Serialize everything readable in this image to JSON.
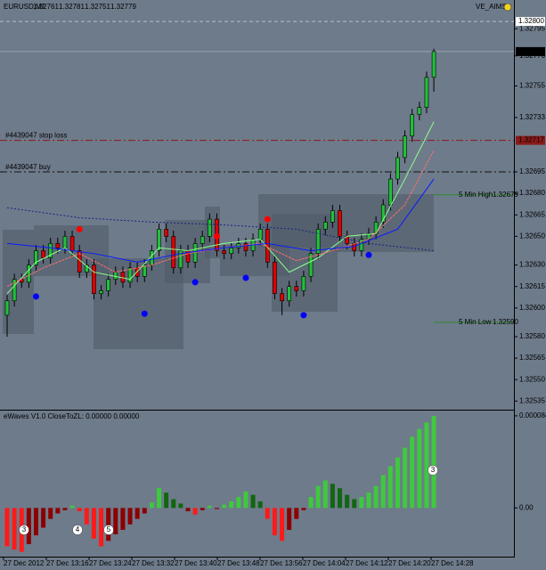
{
  "chart_data": [
    {
      "type": "candlestick",
      "symbol": "EURUSD,M1",
      "indicator_name": "VE_AIMS",
      "bull_color": "#22c03a",
      "bear_color": "#e00000",
      "candles": {
        "open": [
          1.32595,
          1.32605,
          1.3262,
          1.32618,
          1.3263,
          1.3264,
          1.32635,
          1.32645,
          1.32642,
          1.3265,
          1.3264,
          1.32625,
          1.3263,
          1.3261,
          1.32612,
          1.3262,
          1.32625,
          1.32618,
          1.32628,
          1.32622,
          1.3263,
          1.3264,
          1.32655,
          1.3265,
          1.32628,
          1.3264,
          1.32632,
          1.32645,
          1.3265,
          1.32662,
          1.3264,
          1.32638,
          1.32642,
          1.32645,
          1.3264,
          1.32648,
          1.32655,
          1.32632,
          1.3261,
          1.32605,
          1.32615,
          1.32612,
          1.32622,
          1.32638,
          1.32655,
          1.3266,
          1.32668,
          1.3265,
          1.32645,
          1.3264,
          1.32648,
          1.32652,
          1.3266,
          1.32672,
          1.3269,
          1.32705,
          1.3272,
          1.32735,
          1.3274,
          1.32761
        ],
        "high": [
          1.32609,
          1.32624,
          1.32624,
          1.32634,
          1.32644,
          1.32644,
          1.32649,
          1.32649,
          1.32654,
          1.32654,
          1.32644,
          1.32634,
          1.32634,
          1.32616,
          1.32624,
          1.32629,
          1.32629,
          1.32632,
          1.32632,
          1.32634,
          1.32644,
          1.32659,
          1.32659,
          1.32654,
          1.32644,
          1.32644,
          1.32649,
          1.32654,
          1.32666,
          1.32666,
          1.32644,
          1.32646,
          1.32649,
          1.32649,
          1.32652,
          1.32659,
          1.32659,
          1.32636,
          1.32614,
          1.32619,
          1.32619,
          1.32626,
          1.32642,
          1.32659,
          1.32664,
          1.32672,
          1.32672,
          1.32654,
          1.32649,
          1.32652,
          1.32656,
          1.32664,
          1.32676,
          1.32694,
          1.32709,
          1.32724,
          1.32739,
          1.32744,
          1.32765,
          1.32781
        ],
        "low": [
          1.3258,
          1.32601,
          1.32614,
          1.32614,
          1.32626,
          1.32631,
          1.32631,
          1.32638,
          1.32638,
          1.32636,
          1.32621,
          1.32621,
          1.32606,
          1.32606,
          1.32608,
          1.32616,
          1.32614,
          1.32614,
          1.32618,
          1.32618,
          1.32626,
          1.32636,
          1.32646,
          1.32624,
          1.32624,
          1.32628,
          1.32628,
          1.32641,
          1.32646,
          1.32636,
          1.32634,
          1.32634,
          1.32638,
          1.32636,
          1.32636,
          1.32644,
          1.32628,
          1.32606,
          1.32595,
          1.32601,
          1.32608,
          1.32608,
          1.32618,
          1.32634,
          1.32651,
          1.32656,
          1.32646,
          1.32641,
          1.32636,
          1.32636,
          1.32644,
          1.32648,
          1.32656,
          1.32668,
          1.32686,
          1.32701,
          1.32716,
          1.32731,
          1.32736,
          1.32751
        ],
        "close": [
          1.32605,
          1.3262,
          1.32618,
          1.3263,
          1.3264,
          1.32635,
          1.32645,
          1.32642,
          1.3265,
          1.3264,
          1.32625,
          1.3263,
          1.3261,
          1.32612,
          1.3262,
          1.32625,
          1.32618,
          1.32628,
          1.32622,
          1.3263,
          1.3264,
          1.32655,
          1.3265,
          1.32628,
          1.3264,
          1.32632,
          1.32645,
          1.3265,
          1.32662,
          1.3264,
          1.32638,
          1.32642,
          1.32645,
          1.3264,
          1.32648,
          1.32655,
          1.32632,
          1.3261,
          1.32605,
          1.32615,
          1.32612,
          1.32622,
          1.32638,
          1.32655,
          1.3266,
          1.32668,
          1.3265,
          1.32645,
          1.3264,
          1.32648,
          1.32652,
          1.3266,
          1.32672,
          1.3269,
          1.32705,
          1.3272,
          1.32735,
          1.3274,
          1.32761,
          1.32779
        ]
      },
      "lines": [
        {
          "color": "#8cff8c",
          "dash": "none",
          "x": [
            0,
            4,
            8,
            12,
            17,
            21,
            25,
            30,
            35,
            39,
            43,
            47,
            51,
            55,
            59
          ],
          "values": [
            1.3261,
            1.32632,
            1.32642,
            1.32625,
            1.3262,
            1.32642,
            1.3264,
            1.32645,
            1.32648,
            1.32625,
            1.32635,
            1.3265,
            1.32652,
            1.3269,
            1.3273
          ]
        },
        {
          "color": "#ff7070",
          "dash": "3 1",
          "x": [
            0,
            5,
            10,
            15,
            20,
            25,
            30,
            35,
            40,
            45,
            50,
            55,
            59
          ],
          "values": [
            1.32615,
            1.32628,
            1.32638,
            1.32625,
            1.3263,
            1.32638,
            1.32642,
            1.32645,
            1.32633,
            1.3264,
            1.32648,
            1.32672,
            1.3271
          ]
        },
        {
          "color": "#0a1aff",
          "dash": "none",
          "x": [
            0,
            6,
            12,
            18,
            24,
            30,
            36,
            42,
            48,
            54,
            59
          ],
          "values": [
            1.32645,
            1.32642,
            1.32638,
            1.32632,
            1.32638,
            1.32642,
            1.32645,
            1.3264,
            1.32643,
            1.32655,
            1.3269
          ]
        },
        {
          "color": "#1a237e",
          "dash": "2 2",
          "x": [
            0,
            10,
            20,
            30,
            40,
            50,
            59
          ],
          "values": [
            1.3267,
            1.32663,
            1.3266,
            1.32658,
            1.32655,
            1.32645,
            1.3264
          ]
        }
      ],
      "markers": [
        {
          "x": 4,
          "value": 1.32608,
          "color": "#0000ff"
        },
        {
          "x": 19,
          "value": 1.32596,
          "color": "#0000ff"
        },
        {
          "x": 26,
          "value": 1.32618,
          "color": "#0000ff"
        },
        {
          "x": 33,
          "value": 1.32621,
          "color": "#0000ff"
        },
        {
          "x": 41,
          "value": 1.32595,
          "color": "#0000ff"
        },
        {
          "x": 50,
          "value": 1.32637,
          "color": "#0000ff"
        },
        {
          "x": 10,
          "value": 1.32655,
          "color": "#ff0000"
        },
        {
          "x": 29,
          "value": 1.3265,
          "color": "#ff0000"
        },
        {
          "x": 36,
          "value": 1.32662,
          "color": "#ff0000"
        }
      ],
      "levels": [
        {
          "value": 1.328,
          "value_label": "1.32800",
          "color": "#b8bec6",
          "dash": "4 3",
          "extent": "full",
          "box": "#ffffff"
        },
        {
          "name": "#4439047 stop loss",
          "value": 1.32717,
          "color": "#8b1a1a",
          "dash": "8 3 2 3",
          "extent": "full",
          "box": "#8b1a1a"
        },
        {
          "name": "#4439047 buy",
          "value": 1.32695,
          "color": "#111111",
          "dash": "8 3 2 3",
          "extent": "full"
        },
        {
          "name": "5 Min High",
          "value": 1.32679,
          "color": "#2e8b2e",
          "dash": "none",
          "extent": "partial"
        },
        {
          "name": "5 Min Low",
          "value": 1.3259,
          "value_label": "1.32590",
          "color": "#2e8b2e",
          "dash": "none",
          "extent": "partial"
        }
      ],
      "last_price_color": "#9aa3ad",
      "ylim": [
        1.32529,
        1.32815
      ],
      "yticks": [
        1.32795,
        1.32776,
        1.32755,
        1.32733,
        1.32695,
        {
          "value": 1.3268,
          "label": "1.32680"
        },
        1.32665,
        {
          "value": 1.3265,
          "label": "1.32650"
        },
        {
          "value": 1.3263,
          "label": "1.32630"
        },
        1.32615,
        {
          "value": 1.326,
          "label": "1.32600"
        },
        {
          "value": 1.3258,
          "label": "1.32580"
        },
        1.32565,
        {
          "value": 1.3255,
          "label": "1.32550"
        },
        1.32535
      ]
    },
    {
      "type": "bar",
      "title": "eWaves V1.0 CloseToZL: 0.00000 0.00000",
      "up_colors": [
        "#3ec93e",
        "#116611"
      ],
      "down_colors": [
        "#ff1a1a",
        "#8b0000"
      ],
      "values": [
        -3.5e-05,
        -3.8e-05,
        -4e-05,
        -3.3e-05,
        -2.5e-05,
        -1.8e-05,
        -1e-05,
        -5e-06,
        -2e-06,
        2e-06,
        -3e-06,
        -1.5e-05,
        -2.8e-05,
        -3.5e-05,
        -3e-05,
        -2.4e-05,
        -2e-05,
        -1.5e-05,
        -1e-05,
        -5e-06,
        5e-06,
        1.8e-05,
        1.4e-05,
        8e-06,
        4e-06,
        -3e-06,
        -6e-06,
        -2e-06,
        2e-06,
        -1e-06,
        3e-06,
        6e-06,
        1e-05,
        1.5e-05,
        1.2e-05,
        6e-06,
        -1e-05,
        -2.5e-05,
        -3e-05,
        -2e-05,
        -1e-05,
        -2e-06,
        1e-05,
        2e-05,
        2.5e-05,
        2.2e-05,
        1.8e-05,
        1.2e-05,
        8e-06,
        1e-05,
        1.4e-05,
        2e-05,
        3e-05,
        3.8e-05,
        4.6e-05,
        5.5e-05,
        6.5e-05,
        7.2e-05,
        7.8e-05,
        8.4e-05
      ],
      "wave_labels": [
        "3",
        "4",
        "5",
        "3"
      ],
      "ylim": [
        -4.44e-05,
        8.88e-05
      ],
      "yticks": [
        8.4e-05,
        {
          "value": 0,
          "label": "0.00"
        }
      ],
      "xticks": [
        "27 Dec 2012",
        "27 Dec 13:16",
        "27 Dec 13:24",
        "27 Dec 13:32",
        "27 Dec 13:40",
        "27 Dec 13:48",
        "27 Dec 13:56",
        "27 Dec 14:04",
        "27 Dec 14:12",
        "27 Dec 14:20",
        "27 Dec 14:28"
      ]
    }
  ]
}
